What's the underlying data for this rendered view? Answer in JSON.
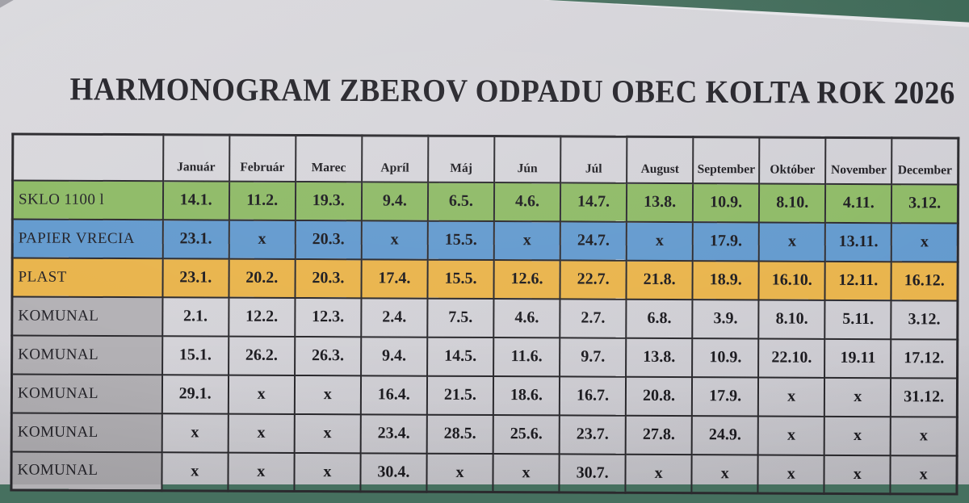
{
  "title": "HARMONOGRAM ZBEROV ODPADU OBEC KOLTA ROK 2026",
  "table": {
    "corner_label": "",
    "months": [
      "Január",
      "Február",
      "Marec",
      "Apríl",
      "Máj",
      "Jún",
      "Júl",
      "August",
      "September",
      "Október",
      "November",
      "December"
    ],
    "no_collection_mark": "x",
    "rows": [
      {
        "label": "SKLO 1100 l",
        "color_key": "sklo_row",
        "values": [
          "14.1.",
          "11.2.",
          "19.3.",
          "9.4.",
          "6.5.",
          "4.6.",
          "14.7.",
          "13.8.",
          "10.9.",
          "8.10.",
          "4.11.",
          "3.12."
        ]
      },
      {
        "label": "PAPIER VRECIA",
        "color_key": "papier_row",
        "values": [
          "23.1.",
          "x",
          "20.3.",
          "x",
          "15.5.",
          "x",
          "24.7.",
          "x",
          "17.9.",
          "x",
          "13.11.",
          "x"
        ]
      },
      {
        "label": "PLAST",
        "color_key": "plast_row",
        "values": [
          "23.1.",
          "20.2.",
          "20.3.",
          "17.4.",
          "15.5.",
          "12.6.",
          "22.7.",
          "21.8.",
          "18.9.",
          "16.10.",
          "12.11.",
          "16.12."
        ]
      },
      {
        "label": "KOMUNAL",
        "color_key": "komunal_label_cell",
        "values": [
          "2.1.",
          "12.2.",
          "12.3.",
          "2.4.",
          "7.5.",
          "4.6.",
          "2.7.",
          "6.8.",
          "3.9.",
          "8.10.",
          "5.11.",
          "3.12."
        ]
      },
      {
        "label": "KOMUNAL",
        "color_key": "komunal_label_cell",
        "values": [
          "15.1.",
          "26.2.",
          "26.3.",
          "9.4.",
          "14.5.",
          "11.6.",
          "9.7.",
          "13.8.",
          "10.9.",
          "22.10.",
          "19.11",
          "17.12."
        ]
      },
      {
        "label": "KOMUNAL",
        "color_key": "komunal_label_cell",
        "values": [
          "29.1.",
          "x",
          "x",
          "16.4.",
          "21.5.",
          "18.6.",
          "16.7.",
          "20.8.",
          "17.9.",
          "x",
          "x",
          "31.12."
        ]
      },
      {
        "label": "KOMUNAL",
        "color_key": "komunal_label_cell",
        "values": [
          "x",
          "x",
          "x",
          "23.4.",
          "28.5.",
          "25.6.",
          "23.7.",
          "27.8.",
          "24.9.",
          "x",
          "x",
          "x"
        ]
      },
      {
        "label": "KOMUNAL",
        "color_key": "komunal_label_cell",
        "values": [
          "x",
          "x",
          "x",
          "30.4.",
          "x",
          "x",
          "30.7.",
          "x",
          "x",
          "x",
          "x",
          "x"
        ]
      }
    ]
  },
  "colors": {
    "sklo_row": "#8eba66",
    "papier_row": "#639ace",
    "plast_row": "#e9b44c",
    "komunal_label_cell": "#b3b1b5",
    "paper": "#d5d4d9",
    "table_surface": "#46705f",
    "border": "#2b2a2e"
  }
}
